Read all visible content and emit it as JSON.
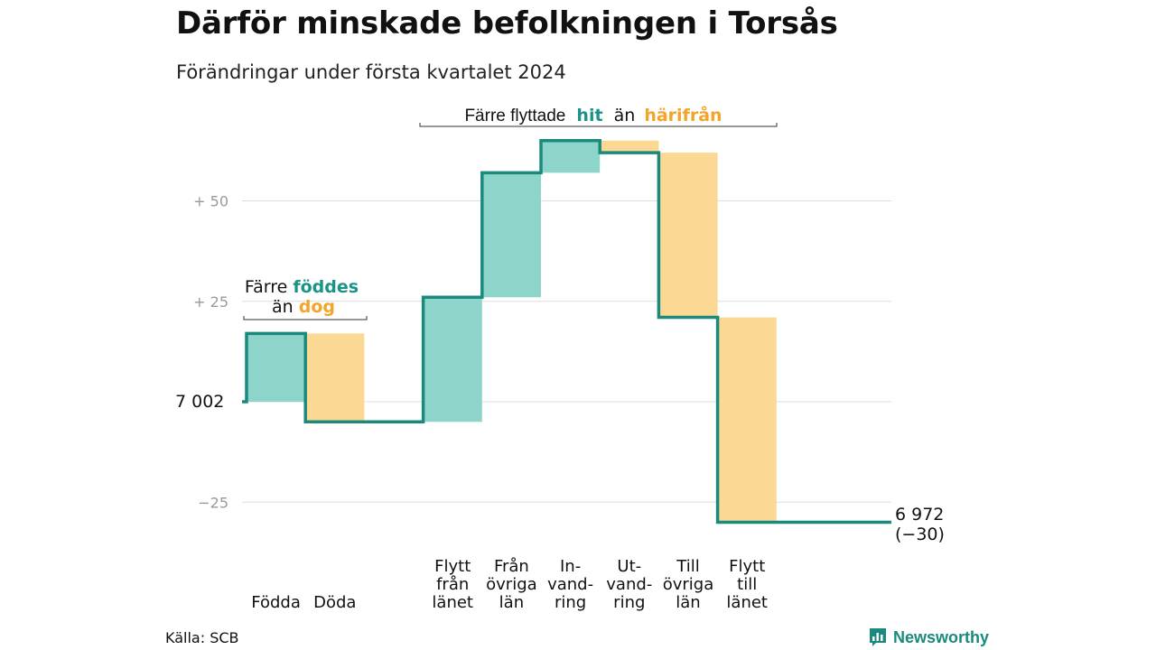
{
  "title": "Därför minskade befolkningen i Torsås",
  "subtitle": "Förändringar under första kvartalet 2024",
  "source": "Källa: SCB",
  "logo": {
    "text": "Newsworthy",
    "icon": "bar-chart-logo-icon"
  },
  "colors": {
    "increase": "#8dd5cb",
    "decrease": "#fbd995",
    "line": "#1a8a7c",
    "teal_text": "#1a9486",
    "orange_text": "#f2a52a",
    "grid": "#dddddd",
    "tick": "#999999"
  },
  "annotations": {
    "births": {
      "line1": "Färre",
      "hi1": "föddes",
      "line2": "än",
      "hi2": "dog"
    },
    "migration": {
      "text1": "Färre flyttade",
      "hi1": "hit",
      "text2": "än",
      "hi2": "härifrån"
    }
  },
  "chart_data": {
    "type": "waterfall",
    "start_label": "7 002",
    "end_label": "6 972",
    "end_change_label": "(−30)",
    "start_value": 0,
    "yticks": [
      {
        "value": 50,
        "label": "+ 50"
      },
      {
        "value": 25,
        "label": "+ 25"
      },
      {
        "value": 0,
        "label": ""
      },
      {
        "value": -25,
        "label": "−25"
      }
    ],
    "ylim": [
      -30,
      65
    ],
    "steps": [
      {
        "label_lines": [
          "Födda"
        ],
        "change": 17
      },
      {
        "label_lines": [
          "Döda"
        ],
        "change": -22
      },
      {
        "label_lines": [],
        "change": 0,
        "gap": true
      },
      {
        "label_lines": [
          "Flytt",
          "från",
          "länet"
        ],
        "change": 31
      },
      {
        "label_lines": [
          "Från",
          "övriga",
          "län"
        ],
        "change": 31
      },
      {
        "label_lines": [
          "In-",
          "vand-",
          "ring"
        ],
        "change": 8
      },
      {
        "label_lines": [
          "Ut-",
          "vand-",
          "ring"
        ],
        "change": -3
      },
      {
        "label_lines": [
          "Till",
          "övriga",
          "län"
        ],
        "change": -41
      },
      {
        "label_lines": [
          "Flytt",
          "till",
          "länet"
        ],
        "change": -51
      },
      {
        "label_lines": [],
        "change": 0,
        "gap": true
      }
    ]
  }
}
